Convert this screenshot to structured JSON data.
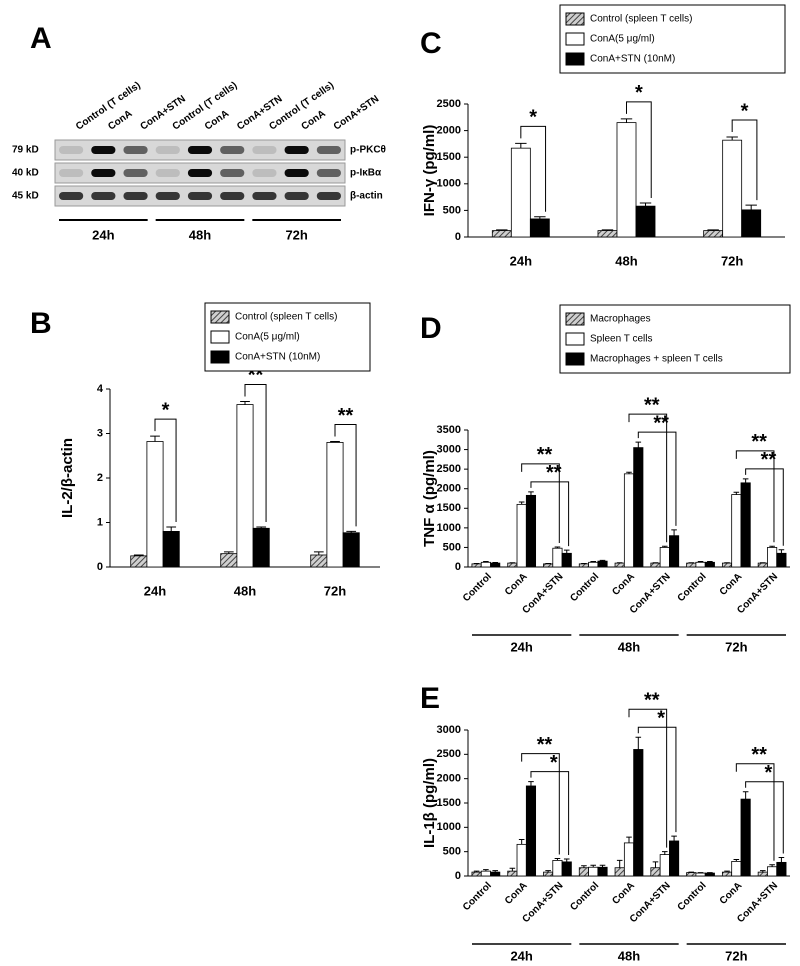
{
  "blot": {
    "panel": "A",
    "lanes": [
      "Control (T cells)",
      "ConA",
      "ConA+STN",
      "Control (T cells)",
      "ConA",
      "ConA+STN",
      "Control (T cells)",
      "ConA",
      "ConA+STN"
    ],
    "rows": [
      {
        "size": "79 kD",
        "protein": "p-PKCθ"
      },
      {
        "size": "40 kD",
        "protein": "p-IκBα"
      },
      {
        "size": "45 kD",
        "protein": "β-actin"
      }
    ],
    "times": [
      "24h",
      "48h",
      "72h"
    ]
  },
  "chart_data": [
    {
      "panel": "B",
      "type": "bar",
      "ylabel": "IL-2/β-actin",
      "categories": [
        "24h",
        "48h",
        "72h"
      ],
      "series": [
        {
          "name": "Control (spleen T cells)",
          "color": "#888888",
          "pattern": "hatch",
          "values": [
            0.25,
            0.3,
            0.27
          ],
          "errors": [
            0.02,
            0.04,
            0.07
          ]
        },
        {
          "name": "ConA(5 μg/ml)",
          "color": "#ffffff",
          "values": [
            2.82,
            3.65,
            2.8
          ],
          "errors": [
            0.12,
            0.07,
            0.02
          ]
        },
        {
          "name": "ConA+STN (10nM)",
          "color": "#000000",
          "values": [
            0.8,
            0.87,
            0.77
          ],
          "errors": [
            0.1,
            0.03,
            0.03
          ]
        }
      ],
      "ylim": [
        0,
        4
      ],
      "yticks": [
        0,
        1,
        2,
        3,
        4
      ],
      "annotations": [
        "*",
        "**",
        "**"
      ]
    },
    {
      "panel": "C",
      "type": "bar",
      "ylabel": "IFN-γ (pg/ml)",
      "categories": [
        "24h",
        "48h",
        "72h"
      ],
      "series": [
        {
          "name": "Control (spleen T cells)",
          "color": "#888888",
          "pattern": "hatch",
          "values": [
            120,
            120,
            120
          ],
          "errors": [
            15,
            15,
            15
          ]
        },
        {
          "name": "ConA(5 μg/ml)",
          "color": "#ffffff",
          "values": [
            1670,
            2150,
            1820
          ],
          "errors": [
            90,
            70,
            60
          ]
        },
        {
          "name": "ConA+STN (10nM)",
          "color": "#000000",
          "values": [
            340,
            580,
            510
          ],
          "errors": [
            40,
            60,
            90
          ]
        }
      ],
      "ylim": [
        0,
        2500
      ],
      "yticks": [
        0,
        500,
        1000,
        1500,
        2000,
        2500
      ],
      "annotations": [
        "*",
        "*",
        "*"
      ]
    },
    {
      "panel": "D",
      "type": "bar",
      "ylabel": "TNF α (pg/ml)",
      "categories": [
        "Control",
        "ConA",
        "ConA+STN",
        "Control",
        "ConA",
        "ConA+STN",
        "Control",
        "ConA",
        "ConA+STN"
      ],
      "groups": [
        "24h",
        "48h",
        "72h"
      ],
      "series": [
        {
          "name": "Macrophages",
          "color": "#888888",
          "pattern": "hatch",
          "values": [
            80,
            100,
            80,
            80,
            100,
            100,
            100,
            100,
            100
          ],
          "errors": [
            10,
            10,
            10,
            10,
            10,
            10,
            10,
            10,
            10
          ]
        },
        {
          "name": "Spleen T cells",
          "color": "#ffffff",
          "values": [
            120,
            1600,
            480,
            120,
            2380,
            500,
            120,
            1850,
            500
          ],
          "errors": [
            20,
            60,
            30,
            20,
            40,
            30,
            20,
            60,
            30
          ]
        },
        {
          "name": "Macrophages + spleen T cells",
          "color": "#000000",
          "values": [
            100,
            1830,
            350,
            150,
            3050,
            800,
            120,
            2150,
            350
          ],
          "errors": [
            15,
            90,
            80,
            20,
            140,
            150,
            20,
            100,
            90
          ]
        }
      ],
      "ylim": [
        0,
        3500
      ],
      "yticks": [
        0,
        500,
        1000,
        1500,
        2000,
        2500,
        3000,
        3500
      ],
      "annotations": [
        [
          "**",
          "**"
        ],
        [
          "**",
          "**"
        ],
        [
          "**",
          "**"
        ]
      ]
    },
    {
      "panel": "E",
      "type": "bar",
      "ylabel": "IL-1β (pg/ml)",
      "categories": [
        "Control",
        "ConA",
        "ConA+STN",
        "Control",
        "ConA",
        "ConA+STN",
        "Control",
        "ConA",
        "ConA+STN"
      ],
      "groups": [
        "24h",
        "48h",
        "72h"
      ],
      "series": [
        {
          "color": "#888888",
          "pattern": "hatch",
          "values": [
            80,
            100,
            80,
            170,
            170,
            170,
            70,
            80,
            80
          ],
          "errors": [
            20,
            60,
            30,
            40,
            150,
            120,
            10,
            20,
            30
          ]
        },
        {
          "color": "#ffffff",
          "values": [
            100,
            650,
            320,
            180,
            680,
            440,
            60,
            300,
            190
          ],
          "errors": [
            30,
            100,
            40,
            40,
            120,
            60,
            10,
            40,
            40
          ]
        },
        {
          "color": "#000000",
          "values": [
            80,
            1850,
            290,
            180,
            2600,
            720,
            60,
            1580,
            280
          ],
          "errors": [
            30,
            90,
            60,
            40,
            250,
            100,
            10,
            150,
            100
          ]
        }
      ],
      "ylim": [
        0,
        3000
      ],
      "yticks": [
        0,
        500,
        1000,
        1500,
        2000,
        2500,
        3000
      ],
      "annotations": [
        [
          "**",
          "*"
        ],
        [
          "**",
          "*"
        ],
        [
          "**",
          "*"
        ]
      ]
    }
  ]
}
